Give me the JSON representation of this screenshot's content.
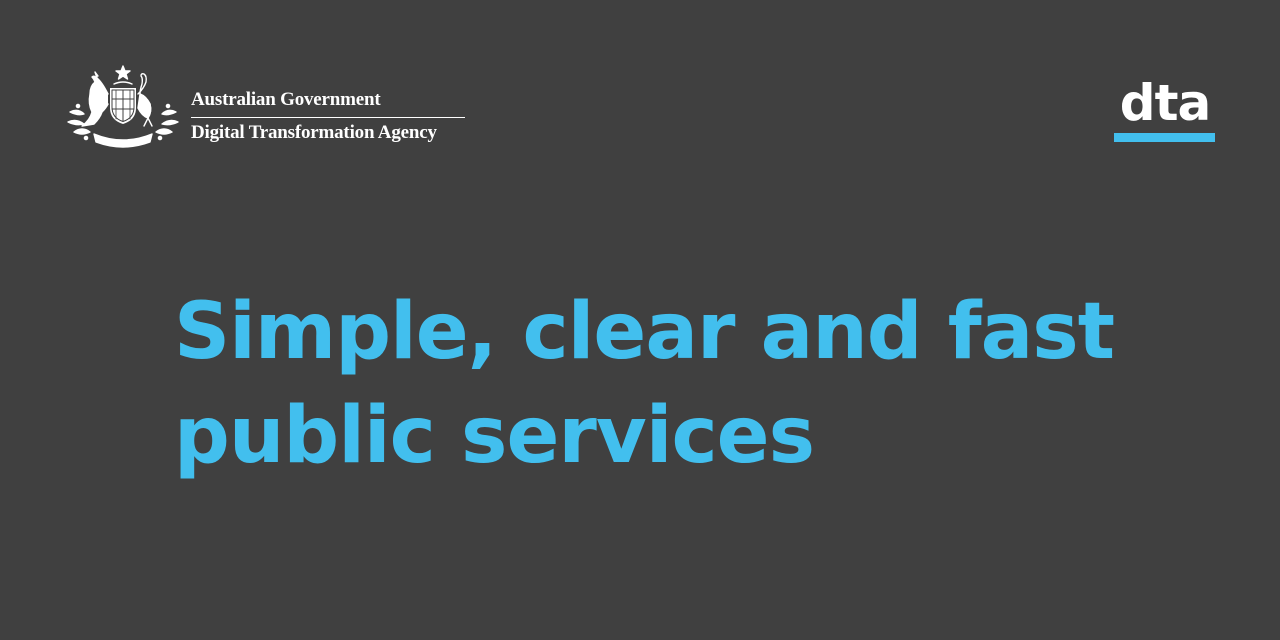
{
  "header": {
    "government": "Australian Government",
    "agency": "Digital Transformation Agency",
    "crest_icon": "coat-of-arms-icon",
    "crest_motto": "AUSTRALIA",
    "logo_text": "dta"
  },
  "hero": {
    "line1": "Simple, clear and fast",
    "line2": "public services"
  },
  "colors": {
    "background": "#404040",
    "accent": "#42bfee",
    "text": "#ffffff"
  }
}
